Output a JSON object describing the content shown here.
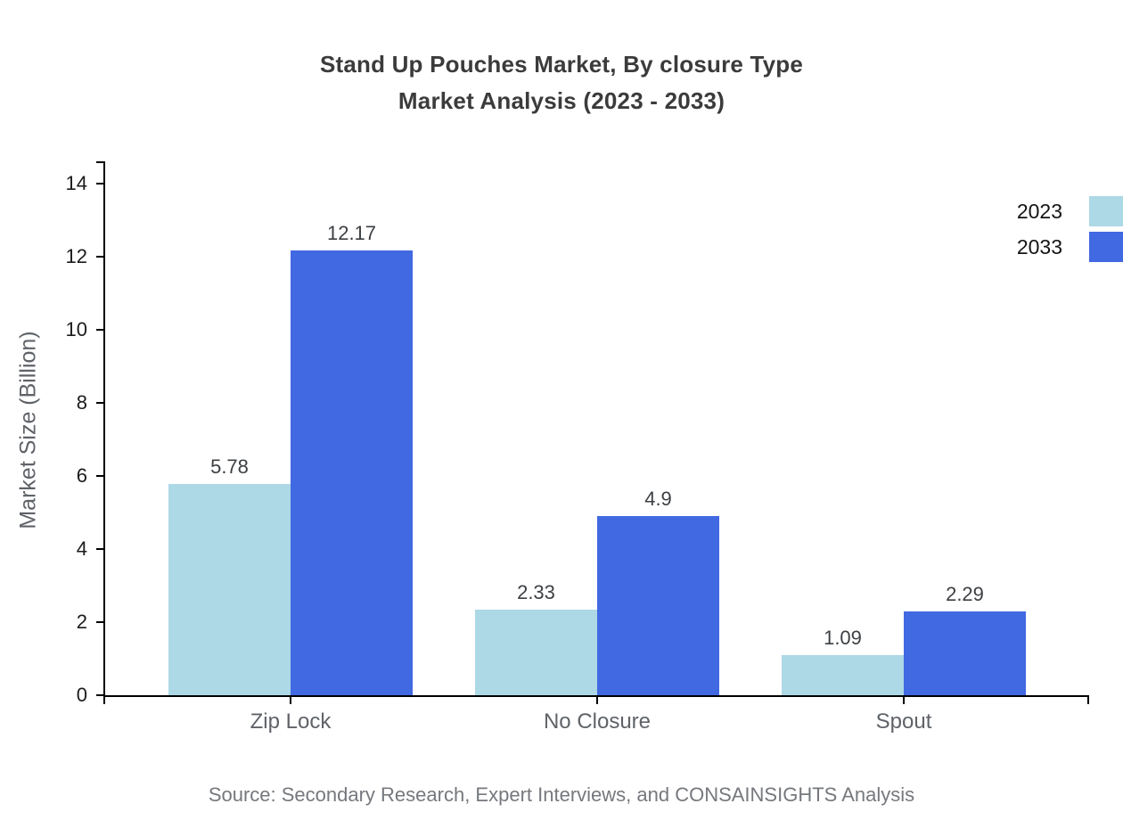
{
  "page": {
    "background": "#ffffff"
  },
  "chart_data": {
    "type": "bar",
    "title_line1": "Stand Up Pouches Market, By closure Type",
    "title_line2": "Market Analysis (2023 - 2033)",
    "ylabel": "Market Size (Billion)",
    "xlabel": "",
    "categories": [
      "Zip Lock",
      "No Closure",
      "Spout"
    ],
    "series": [
      {
        "name": "2023",
        "color": "#ADD8E6",
        "values": [
          5.78,
          2.33,
          1.09
        ],
        "labels": [
          "5.78",
          "2.33",
          "1.09"
        ]
      },
      {
        "name": "2033",
        "color": "#4169E1",
        "values": [
          12.17,
          4.9,
          2.29
        ],
        "labels": [
          "12.17",
          "4.9",
          "2.29"
        ]
      }
    ],
    "yticks": [
      0,
      2,
      4,
      6,
      8,
      10,
      12,
      14
    ],
    "ylim": [
      0,
      14.6
    ],
    "grid": false,
    "legend_position": "top-right",
    "axis_color": "#000000",
    "source": "Source: Secondary Research, Expert Interviews, and CONSAINSIGHTS Analysis"
  }
}
